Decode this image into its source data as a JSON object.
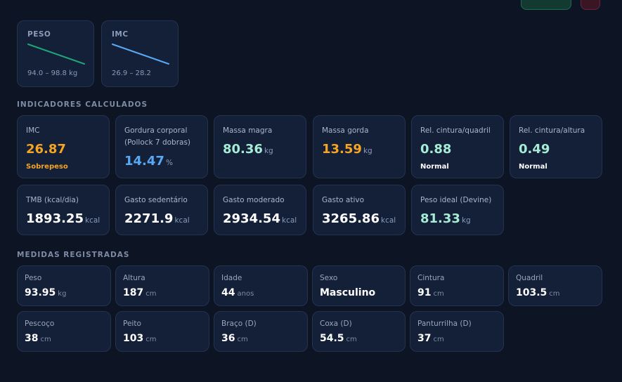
{
  "colors": {
    "background": "#0d1424",
    "card": "#141f38",
    "orange": "#f5a524",
    "blue": "#58a9f5",
    "mint": "#a5ecd5",
    "peso_line": "#1fa37a",
    "imc_line": "#58a9f5"
  },
  "trends": {
    "peso": {
      "title": "PESO",
      "range": "94.0 – 98.8 kg"
    },
    "imc": {
      "title": "IMC",
      "range": "26.9 – 28.2"
    }
  },
  "indicators": {
    "title": "INDICADORES CALCULADOS",
    "imc": {
      "label": "IMC",
      "value": "26.87",
      "status": "Sobrepeso"
    },
    "gordura": {
      "label_line1": "Gordura corporal",
      "label_line2": "(Pollock 7 dobras)",
      "value": "14.47",
      "unit": "%"
    },
    "massa_magra": {
      "label": "Massa magra",
      "value": "80.36",
      "unit": "kg"
    },
    "massa_gorda": {
      "label": "Massa gorda",
      "value": "13.59",
      "unit": "kg"
    },
    "rcq": {
      "label": "Rel. cintura/quadril",
      "value": "0.88",
      "status": "Normal"
    },
    "rca": {
      "label": "Rel. cintura/altura",
      "value": "0.49",
      "status": "Normal"
    },
    "tmb": {
      "label": "TMB (kcal/dia)",
      "value": "1893.25",
      "unit": "kcal"
    },
    "sedentario": {
      "label": "Gasto sedentário",
      "value": "2271.9",
      "unit": "kcal"
    },
    "moderado": {
      "label": "Gasto moderado",
      "value": "2934.54",
      "unit": "kcal"
    },
    "ativo": {
      "label": "Gasto ativo",
      "value": "3265.86",
      "unit": "kcal"
    },
    "peso_ideal": {
      "label": "Peso ideal (Devine)",
      "value": "81.33",
      "unit": "kg"
    }
  },
  "measurements": {
    "title": "MEDIDAS REGISTRADAS",
    "peso": {
      "label": "Peso",
      "value": "93.95",
      "unit": "kg"
    },
    "altura": {
      "label": "Altura",
      "value": "187",
      "unit": "cm"
    },
    "idade": {
      "label": "Idade",
      "value": "44",
      "unit": "anos"
    },
    "sexo": {
      "label": "Sexo",
      "value": "Masculino"
    },
    "cintura": {
      "label": "Cintura",
      "value": "91",
      "unit": "cm"
    },
    "quadril": {
      "label": "Quadril",
      "value": "103.5",
      "unit": "cm"
    },
    "pescoco": {
      "label": "Pescoço",
      "value": "38",
      "unit": "cm"
    },
    "peito": {
      "label": "Peito",
      "value": "103",
      "unit": "cm"
    },
    "braco": {
      "label": "Braço (D)",
      "value": "36",
      "unit": "cm"
    },
    "coxa": {
      "label": "Coxa (D)",
      "value": "54.5",
      "unit": "cm"
    },
    "panturrilha": {
      "label": "Panturrilha (D)",
      "value": "37",
      "unit": "cm"
    }
  }
}
